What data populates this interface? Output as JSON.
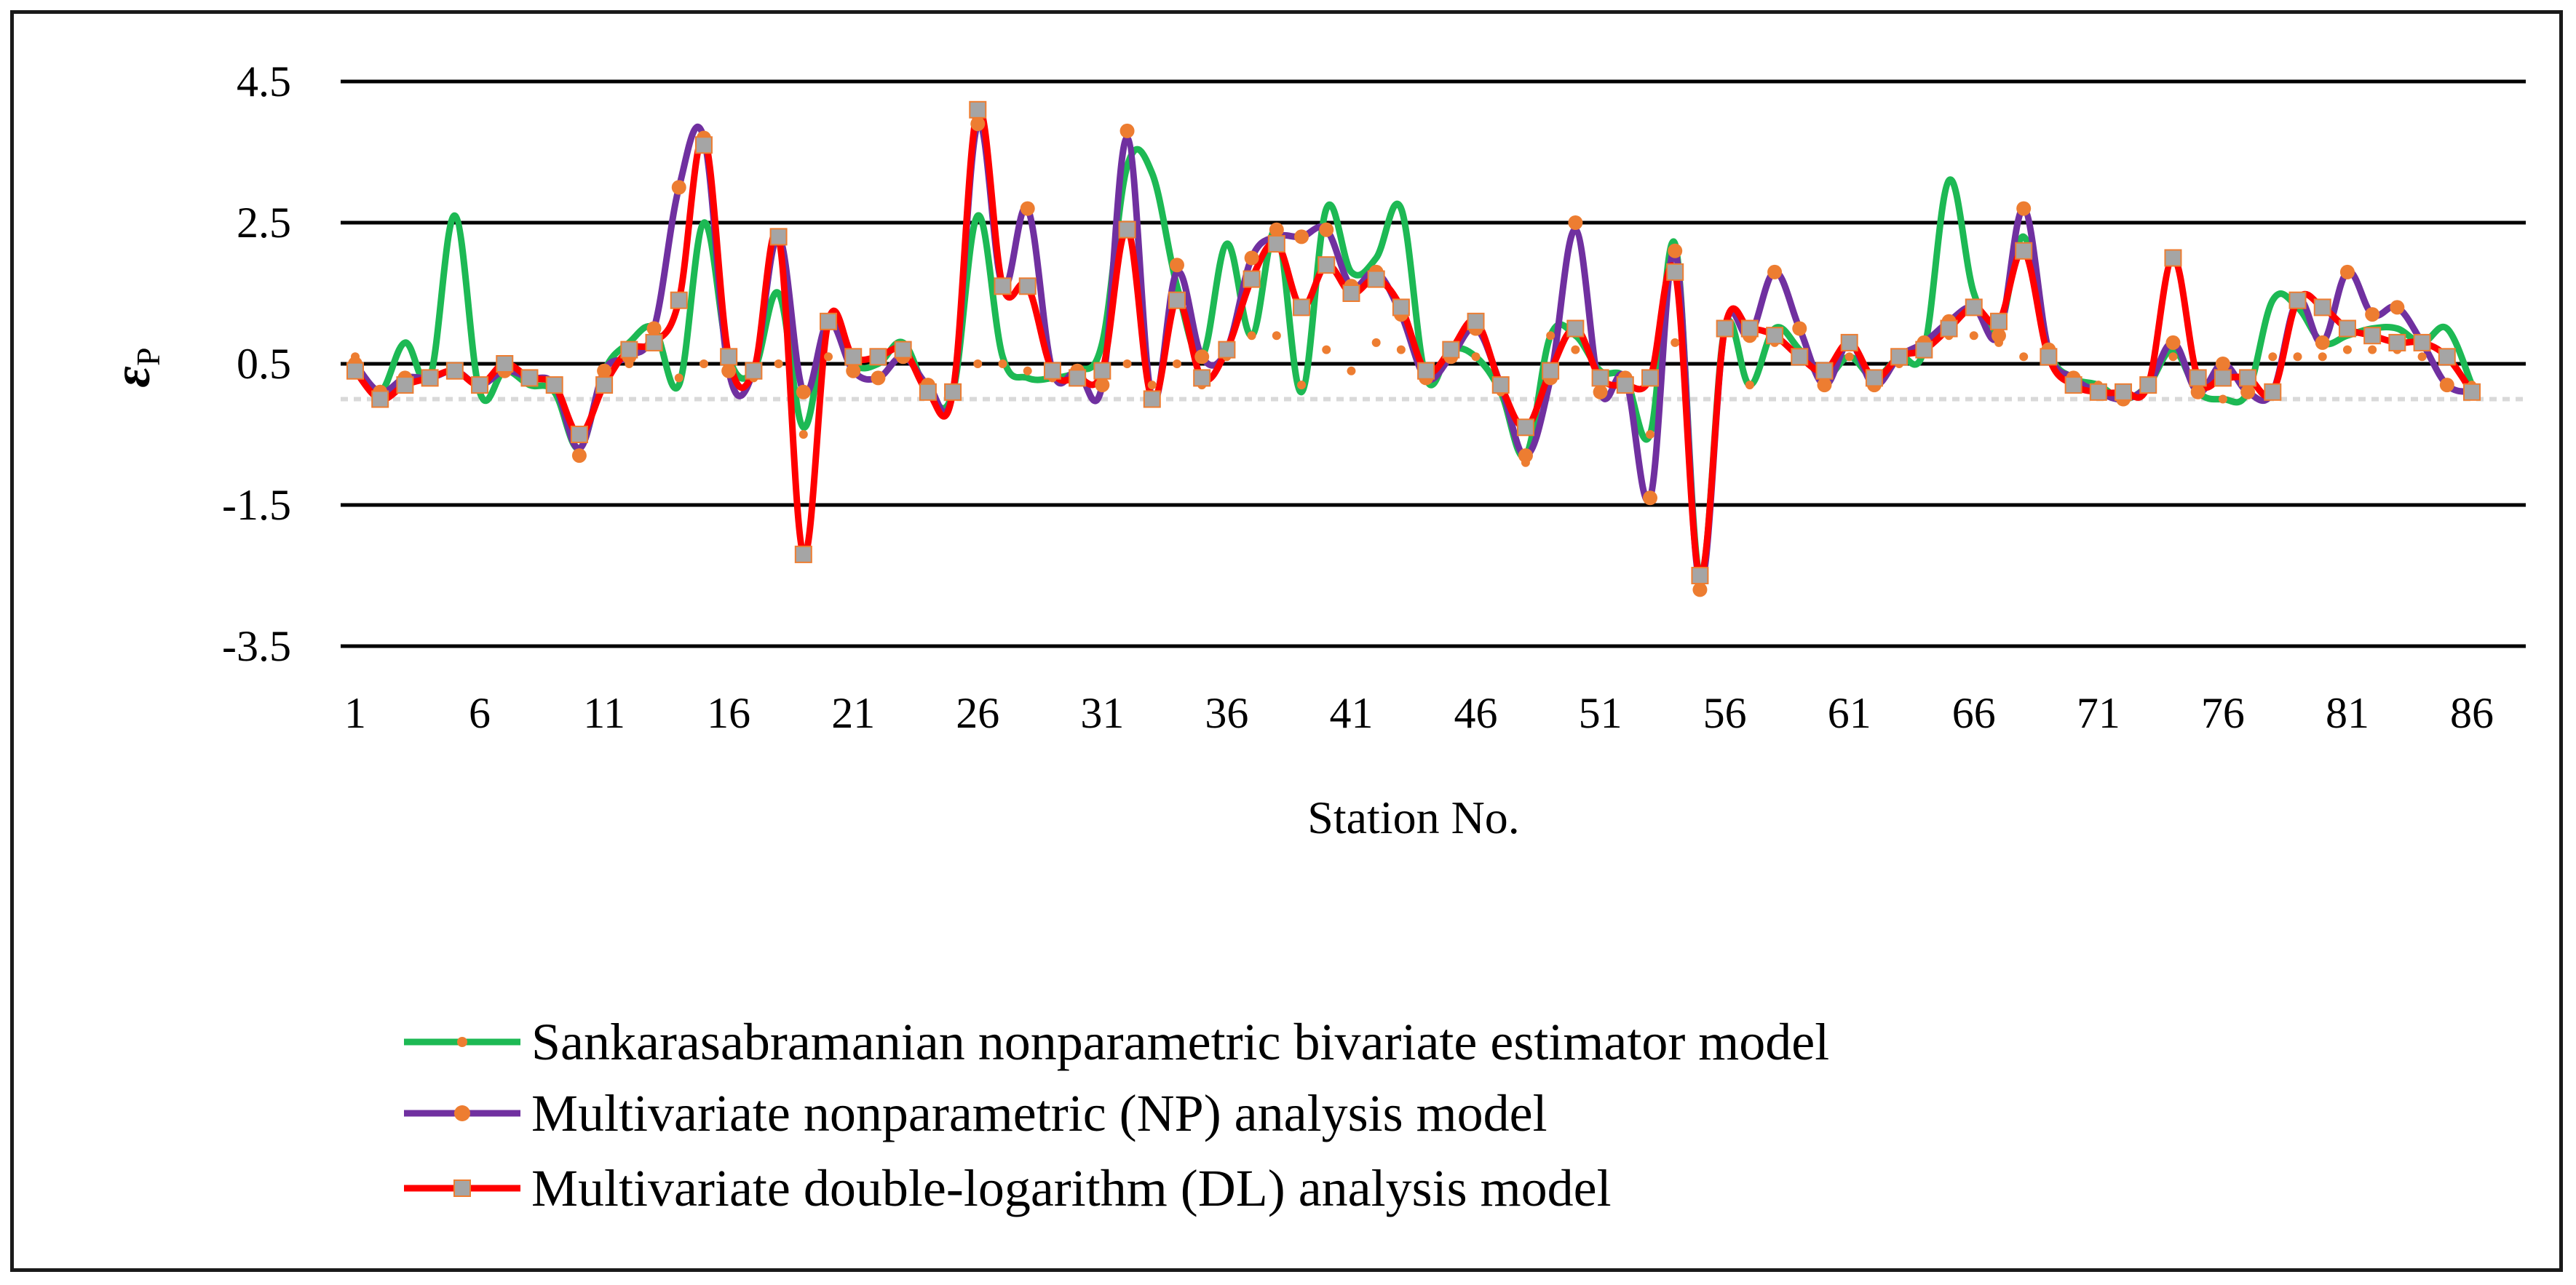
{
  "colors": {
    "sankara": "#1db954",
    "np": "#7030a0",
    "dl": "#ff0000",
    "orange_marker": "#ed7d31",
    "gray_marker": "#a5a5a5",
    "grid": "#000000",
    "zero_line": "#d9d9d9"
  },
  "chart_data": {
    "type": "line",
    "ylabel_main": "ε",
    "ylabel_sub": "P",
    "xlabel": "Station No.",
    "ylim": [
      -3.5,
      4.5
    ],
    "yticks": [
      4.5,
      2.5,
      0.5,
      -1.5,
      -3.5
    ],
    "ytick_labels": [
      "4.5",
      "2.5",
      "0.5",
      "-1.5",
      "-3.5"
    ],
    "xlim": [
      1,
      86
    ],
    "xticks": [
      1,
      6,
      11,
      16,
      21,
      26,
      31,
      36,
      41,
      46,
      51,
      56,
      61,
      66,
      71,
      76,
      81,
      86
    ],
    "xtick_labels": [
      "1",
      "6",
      "11",
      "16",
      "21",
      "26",
      "31",
      "36",
      "41",
      "46",
      "51",
      "56",
      "61",
      "66",
      "71",
      "76",
      "81",
      "86"
    ],
    "series": [
      {
        "name": "Sankarasabramanian nonparametric bivariate estimator model",
        "key": "sankara",
        "values": [
          0.5,
          0.1,
          0.8,
          0.3,
          2.6,
          0.1,
          0.4,
          0.2,
          0.1,
          -0.7,
          0.4,
          0.8,
          1,
          0.2,
          2.5,
          0.6,
          0.4,
          1.5,
          -0.4,
          1.1,
          0.5,
          0.5,
          0.8,
          0.1,
          0.1,
          2.6,
          0.6,
          0.3,
          0.3,
          0.4,
          0.8,
          3.3,
          3.2,
          1.6,
          0.6,
          2.2,
          0.9,
          2.4,
          0.1,
          2.7,
          1.8,
          2,
          2.7,
          0.3,
          0.7,
          0.6,
          0.1,
          -0.8,
          0.9,
          0.9,
          0.4,
          0.3,
          -0.5,
          2.2,
          -2.5,
          1,
          0.2,
          1,
          0.7,
          0.3,
          0.6,
          0.3,
          0.6,
          0.7,
          3.1,
          1.5,
          1,
          2.3,
          0.7,
          0.3,
          0.2,
          0,
          0.2,
          0.7,
          0.1,
          0,
          0.1,
          1.4,
          1.3,
          0.8,
          0.9,
          1,
          1,
          0.8,
          1,
          0.2
        ],
        "markers": [
          0.6,
          0.1,
          0.3,
          0.3,
          0.4,
          0.2,
          0.4,
          0.3,
          0.2,
          -0.8,
          0.2,
          0.5,
          0.9,
          0.3,
          0.5,
          0.5,
          0.3,
          0.5,
          -0.5,
          0.6,
          0.5,
          0.3,
          0.6,
          0.2,
          0.1,
          0.5,
          0.5,
          0.4,
          0.3,
          0.3,
          0.2,
          0.5,
          0.2,
          0.5,
          0.2,
          0.6,
          0.9,
          0.9,
          0.2,
          0.7,
          0.4,
          0.8,
          0.7,
          0.3,
          0.6,
          0.6,
          0.1,
          -0.9,
          0.9,
          0.7,
          0.3,
          0.2,
          -0.5,
          0.8,
          -2.6,
          1,
          0.2,
          0.8,
          0.6,
          0.3,
          0.6,
          0.3,
          0.5,
          0.7,
          0.9,
          0.9,
          0.8,
          0.6,
          0.6,
          0.3,
          0.2,
          0,
          0.2,
          0.6,
          0.1,
          0,
          0.1,
          0.6,
          0.6,
          0.6,
          0.7,
          0.7,
          0.7,
          0.6,
          0.6,
          0.2
        ]
      },
      {
        "name": "Multivariate nonparametric (NP) analysis model",
        "key": "np",
        "values": [
          0.5,
          0.1,
          0.3,
          0.3,
          0.4,
          0.2,
          0.4,
          0.3,
          0.2,
          -0.7,
          0.4,
          0.6,
          1,
          3,
          3.7,
          0.4,
          0.4,
          2.3,
          0.1,
          1.1,
          0.4,
          0.3,
          0.6,
          0.2,
          0.1,
          3.9,
          1.6,
          2.7,
          0.4,
          0.4,
          0.2,
          3.7,
          0,
          1.8,
          0.6,
          0.7,
          2,
          2.3,
          2.3,
          2.4,
          1.6,
          1.8,
          1.2,
          0.3,
          0.6,
          1,
          0.2,
          -0.8,
          0.3,
          2.4,
          0.1,
          0.3,
          -1.4,
          2.1,
          -2.6,
          1,
          0.9,
          1.8,
          1,
          0.2,
          0.8,
          0.2,
          0.6,
          0.8,
          1.1,
          1.3,
          0.9,
          2.7,
          0.7,
          0.3,
          0.1,
          0,
          0.2,
          0.8,
          0.1,
          0.5,
          0.1,
          0.1,
          1.4,
          0.8,
          1.8,
          1.2,
          1.3,
          0.8,
          0.2,
          0.1
        ],
        "markers": [
          0.5,
          0.1,
          0.3,
          0.3,
          0.4,
          0.2,
          0.4,
          0.3,
          0.2,
          -0.8,
          0.4,
          0.6,
          1,
          3,
          3.7,
          0.4,
          0.4,
          2.3,
          0.1,
          1.1,
          0.4,
          0.3,
          0.6,
          0.2,
          0.1,
          3.9,
          1.6,
          2.7,
          0.4,
          0.4,
          0.2,
          3.8,
          0,
          1.9,
          0.6,
          0.7,
          2,
          2.4,
          2.3,
          2.4,
          1.6,
          1.8,
          1.2,
          0.3,
          0.6,
          1,
          0.2,
          -0.8,
          0.3,
          2.5,
          0.1,
          0.3,
          -1.4,
          2.1,
          -2.7,
          1,
          0.9,
          1.8,
          1,
          0.2,
          0.8,
          0.2,
          0.6,
          0.8,
          1.1,
          1.3,
          0.9,
          2.7,
          0.7,
          0.3,
          0.1,
          0,
          0.2,
          0.8,
          0.1,
          0.5,
          0.1,
          0.1,
          1.4,
          0.8,
          1.8,
          1.2,
          1.3,
          0.8,
          0.2,
          0.1
        ]
      },
      {
        "name": "Multivariate double-logarithm (DL) analysis model",
        "key": "dl",
        "values": [
          0.4,
          0,
          0.2,
          0.3,
          0.4,
          0.2,
          0.5,
          0.3,
          0.2,
          -0.5,
          0.2,
          0.7,
          0.8,
          1.4,
          3.7,
          0.6,
          0.4,
          2.3,
          -2.2,
          1.1,
          0.6,
          0.6,
          0.7,
          0.1,
          0.1,
          4.1,
          1.6,
          1.6,
          0.4,
          0.3,
          0.4,
          2.4,
          0,
          1.4,
          0.3,
          0.7,
          1.7,
          2.2,
          1.3,
          1.9,
          1.5,
          1.7,
          1.3,
          0.4,
          0.7,
          1.1,
          0.2,
          -0.4,
          0.4,
          1,
          0.3,
          0.2,
          0.3,
          1.8,
          -2.5,
          1,
          1,
          0.9,
          0.6,
          0.4,
          0.8,
          0.3,
          0.6,
          0.7,
          1,
          1.3,
          1.1,
          2.1,
          0.6,
          0.2,
          0.1,
          0.1,
          0.2,
          2,
          0.3,
          0.3,
          0.3,
          0.1,
          1.4,
          1.3,
          1,
          0.9,
          0.8,
          0.8,
          0.6,
          0.1
        ],
        "markers": [
          0.4,
          0,
          0.2,
          0.3,
          0.4,
          0.2,
          0.5,
          0.3,
          0.2,
          -0.5,
          0.2,
          0.7,
          0.8,
          1.4,
          3.6,
          0.6,
          0.4,
          2.3,
          -2.2,
          1.1,
          0.6,
          0.6,
          0.7,
          0.1,
          0.1,
          4.1,
          1.6,
          1.6,
          0.4,
          0.3,
          0.4,
          2.4,
          0,
          1.4,
          0.3,
          0.7,
          1.7,
          2.2,
          1.3,
          1.9,
          1.5,
          1.7,
          1.3,
          0.4,
          0.7,
          1.1,
          0.2,
          -0.4,
          0.4,
          1,
          0.3,
          0.2,
          0.3,
          1.8,
          -2.5,
          1,
          1,
          0.9,
          0.6,
          0.4,
          0.8,
          0.3,
          0.6,
          0.7,
          1,
          1.3,
          1.1,
          2.1,
          0.6,
          0.2,
          0.1,
          0.1,
          0.2,
          2,
          0.3,
          0.3,
          0.3,
          0.1,
          1.4,
          1.3,
          1,
          0.9,
          0.8,
          0.8,
          0.6,
          0.1
        ]
      }
    ]
  }
}
